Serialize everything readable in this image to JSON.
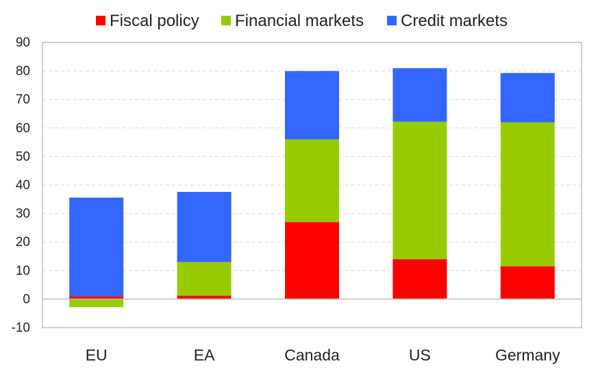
{
  "chart_data": {
    "type": "bar",
    "stacked": true,
    "categories": [
      "EU",
      "EA",
      "Canada",
      "US",
      "Germany"
    ],
    "series": [
      {
        "name": "Fiscal policy",
        "color": "#ff0000",
        "values": [
          1,
          1.2,
          27,
          14,
          11.5
        ]
      },
      {
        "name": "Financial markets",
        "color": "#99cc00",
        "values": [
          -2.8,
          11.8,
          29,
          48.2,
          50.5
        ]
      },
      {
        "name": "Credit markets",
        "color": "#3366ff",
        "values": [
          34.6,
          24.6,
          24,
          18.8,
          17.3
        ]
      }
    ],
    "ylim": [
      -10,
      90
    ],
    "yticks": [
      -10,
      0,
      10,
      20,
      30,
      40,
      50,
      60,
      70,
      80,
      90
    ],
    "grid": true,
    "legend_position": "top",
    "title": "",
    "xlabel": "",
    "ylabel": ""
  }
}
